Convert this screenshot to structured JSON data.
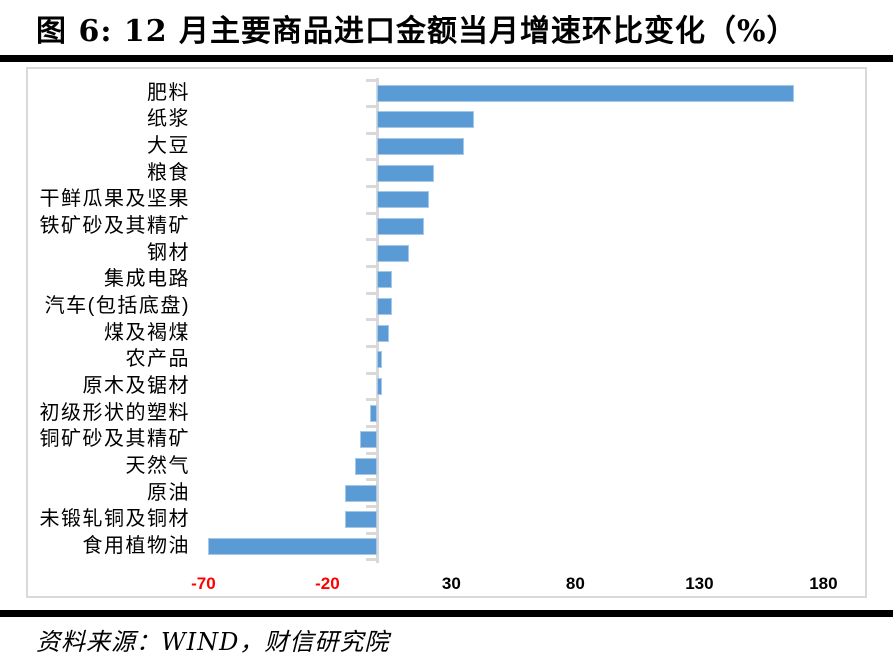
{
  "title": "图 6: 12 月主要商品进口金额当月增速环比变化（%）",
  "source": "资料来源：WIND，财信研究院",
  "colors": {
    "bar": "#5B9BD5",
    "axis": "#D9D9D9",
    "negative_tick_label": "#FF0000",
    "positive_tick_label": "#000000",
    "rule": "#000000"
  },
  "chart_data": {
    "type": "bar",
    "orientation": "horizontal",
    "title": "12 月主要商品进口金额当月增速环比变化（%）",
    "unit": "%",
    "categories": [
      "肥料",
      "纸浆",
      "大豆",
      "粮食",
      "干鲜瓜果及坚果",
      "铁矿砂及其精矿",
      "钢材",
      "集成电路",
      "汽车(包括底盘)",
      "煤及褐煤",
      "农产品",
      "原木及锯材",
      "初级形状的塑料",
      "铜矿砂及其精矿",
      "天然气",
      "原油",
      "未锻轧铜及铜材",
      "食用植物油"
    ],
    "values": [
      168,
      39,
      35,
      23,
      21,
      19,
      13,
      6,
      6,
      5,
      2,
      2,
      -3,
      -7,
      -9,
      -13,
      -13,
      -68
    ],
    "xticks": [
      -70,
      -20,
      30,
      80,
      130,
      180
    ],
    "xlim": [
      -73,
      197
    ],
    "grid": false,
    "legend": false,
    "value_axis_crosses_at": 0,
    "negative_tick_labels_red": true
  }
}
